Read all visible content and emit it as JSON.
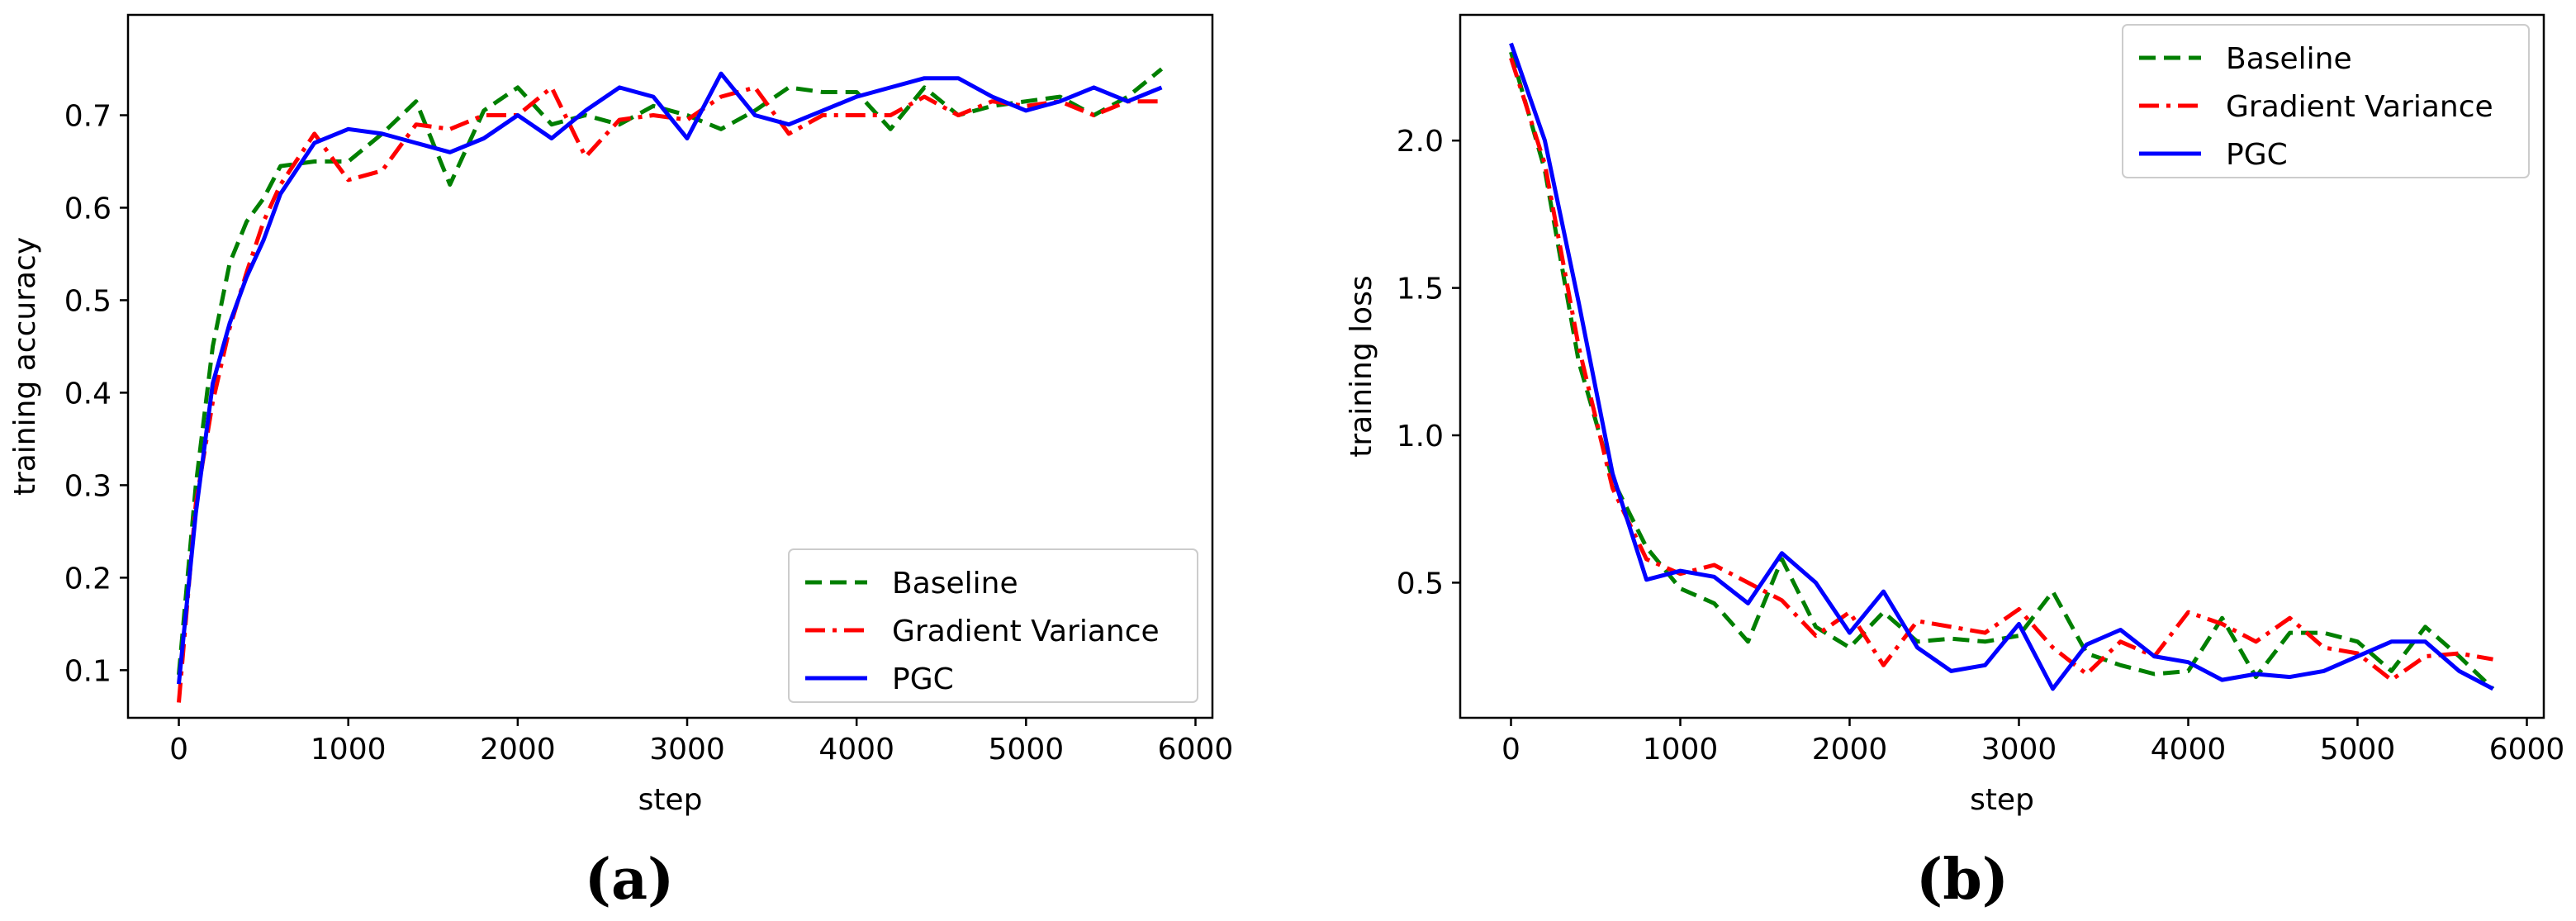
{
  "chart_data": [
    {
      "type": "line",
      "panel_label": "(a)",
      "xlabel": "step",
      "ylabel": "training accuracy",
      "xlim": [
        -300,
        6100
      ],
      "ylim": [
        0.0485,
        0.8085
      ],
      "xticks": [
        0,
        1000,
        2000,
        3000,
        4000,
        5000,
        6000
      ],
      "yticks": [
        0.1,
        0.2,
        0.3,
        0.4,
        0.5,
        0.6,
        0.7
      ],
      "xtick_labels": [
        "0",
        "1000",
        "2000",
        "3000",
        "4000",
        "5000",
        "6000"
      ],
      "ytick_labels": [
        "0.1",
        "0.2",
        "0.3",
        "0.4",
        "0.5",
        "0.6",
        "0.7"
      ],
      "legend_position": "lower-right",
      "x": [
        0,
        100,
        200,
        300,
        400,
        500,
        600,
        800,
        1000,
        1200,
        1400,
        1600,
        1800,
        2000,
        2200,
        2400,
        2600,
        2800,
        3000,
        3200,
        3400,
        3600,
        3800,
        4000,
        4200,
        4400,
        4600,
        4800,
        5000,
        5200,
        5400,
        5600,
        5800
      ],
      "series": [
        {
          "name": "Baseline",
          "color": "#007f00",
          "style": "dashed",
          "values": [
            0.095,
            0.3,
            0.45,
            0.54,
            0.585,
            0.61,
            0.645,
            0.65,
            0.65,
            0.68,
            0.715,
            0.625,
            0.705,
            0.73,
            0.69,
            0.7,
            0.69,
            0.71,
            0.7,
            0.685,
            0.705,
            0.73,
            0.725,
            0.725,
            0.685,
            0.73,
            0.7,
            0.71,
            0.715,
            0.72,
            0.7,
            0.72,
            0.75
          ]
        },
        {
          "name": "Gradient Variance",
          "color": "#ff0000",
          "style": "dashdot",
          "values": [
            0.065,
            0.28,
            0.39,
            0.47,
            0.53,
            0.585,
            0.625,
            0.68,
            0.63,
            0.64,
            0.69,
            0.685,
            0.7,
            0.7,
            0.73,
            0.655,
            0.695,
            0.7,
            0.695,
            0.72,
            0.73,
            0.68,
            0.7,
            0.7,
            0.7,
            0.72,
            0.7,
            0.715,
            0.71,
            0.715,
            0.7,
            0.715,
            0.715
          ]
        },
        {
          "name": "PGC",
          "color": "#0000ff",
          "style": "solid",
          "values": [
            0.085,
            0.27,
            0.41,
            0.475,
            0.525,
            0.565,
            0.615,
            0.67,
            0.685,
            0.68,
            0.67,
            0.66,
            0.675,
            0.7,
            0.675,
            0.705,
            0.73,
            0.72,
            0.675,
            0.745,
            0.7,
            0.69,
            0.705,
            0.72,
            0.73,
            0.74,
            0.74,
            0.72,
            0.705,
            0.715,
            0.73,
            0.715,
            0.73
          ]
        }
      ]
    },
    {
      "type": "line",
      "panel_label": "(b)",
      "xlabel": "step",
      "ylabel": "training loss",
      "xlim": [
        -300,
        6100
      ],
      "ylim": [
        0.0415,
        2.4265
      ],
      "xticks": [
        0,
        1000,
        2000,
        3000,
        4000,
        5000,
        6000
      ],
      "yticks": [
        0.5,
        1.0,
        1.5,
        2.0
      ],
      "xtick_labels": [
        "0",
        "1000",
        "2000",
        "3000",
        "4000",
        "5000",
        "6000"
      ],
      "ytick_labels": [
        "0.5",
        "1.0",
        "1.5",
        "2.0"
      ],
      "legend_position": "upper-right",
      "x": [
        0,
        200,
        400,
        600,
        800,
        1000,
        1200,
        1400,
        1600,
        1800,
        2000,
        2200,
        2400,
        2600,
        2800,
        3000,
        3200,
        3400,
        3600,
        3800,
        4000,
        4200,
        4400,
        4600,
        4800,
        5000,
        5200,
        5400,
        5600,
        5800
      ],
      "series": [
        {
          "name": "Baseline",
          "color": "#007f00",
          "style": "dashed",
          "values": [
            2.3,
            1.9,
            1.25,
            0.85,
            0.62,
            0.48,
            0.43,
            0.3,
            0.58,
            0.35,
            0.28,
            0.4,
            0.3,
            0.31,
            0.3,
            0.32,
            0.47,
            0.26,
            0.22,
            0.19,
            0.2,
            0.38,
            0.18,
            0.33,
            0.33,
            0.3,
            0.2,
            0.35,
            0.25,
            0.14
          ]
        },
        {
          "name": "Gradient Variance",
          "color": "#ff0000",
          "style": "dashdot",
          "values": [
            2.28,
            1.92,
            1.3,
            0.82,
            0.58,
            0.53,
            0.56,
            0.5,
            0.44,
            0.32,
            0.4,
            0.22,
            0.37,
            0.35,
            0.33,
            0.41,
            0.28,
            0.19,
            0.3,
            0.25,
            0.4,
            0.36,
            0.3,
            0.38,
            0.28,
            0.26,
            0.17,
            0.25,
            0.26,
            0.24
          ]
        },
        {
          "name": "PGC",
          "color": "#0000ff",
          "style": "solid",
          "values": [
            2.33,
            2.0,
            1.45,
            0.87,
            0.51,
            0.54,
            0.52,
            0.43,
            0.6,
            0.5,
            0.33,
            0.47,
            0.28,
            0.2,
            0.22,
            0.36,
            0.14,
            0.29,
            0.34,
            0.25,
            0.23,
            0.17,
            0.19,
            0.18,
            0.2,
            0.25,
            0.3,
            0.3,
            0.2,
            0.14
          ]
        }
      ]
    }
  ]
}
